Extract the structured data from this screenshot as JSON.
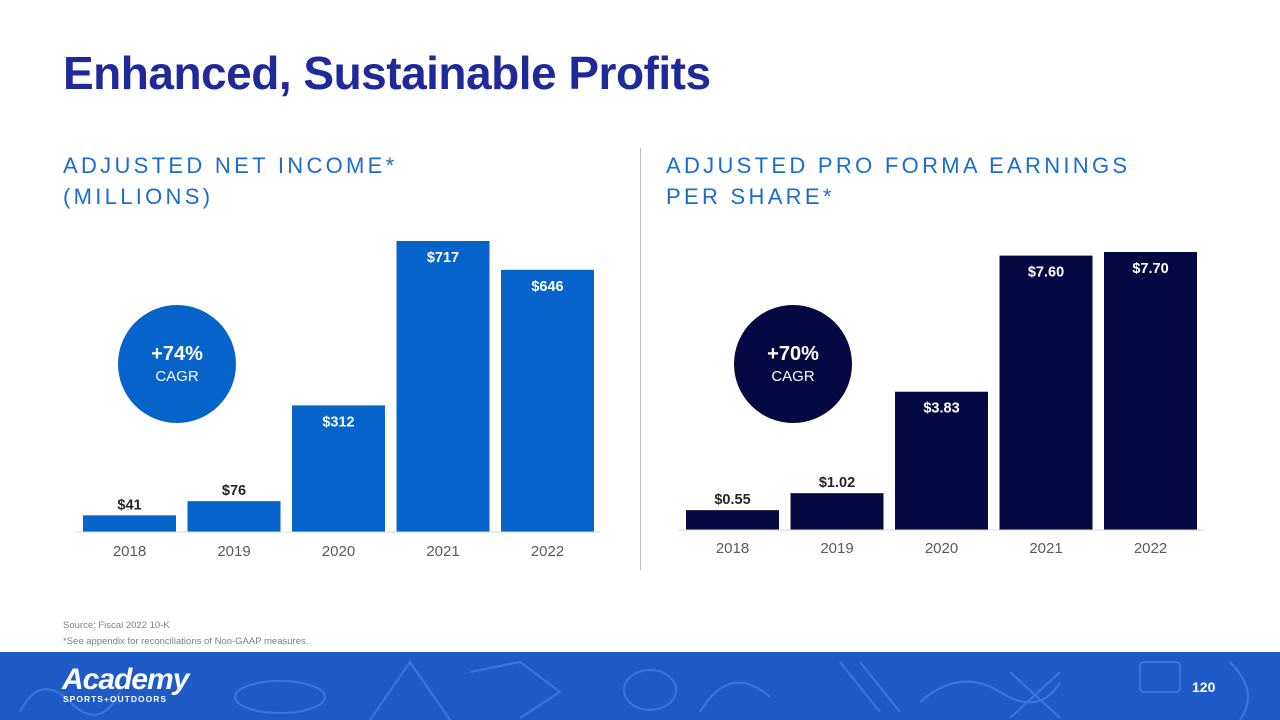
{
  "title": "Enhanced, Sustainable Profits",
  "left_subtitle": {
    "line1": "ADJUSTED NET INCOME*",
    "line2": "(MILLIONS)"
  },
  "right_subtitle": {
    "line1": "ADJUSTED PRO FORMA EARNINGS",
    "line2": "PER SHARE*"
  },
  "left_cagr": {
    "value": "+74%",
    "label": "CAGR"
  },
  "right_cagr": {
    "value": "+70%",
    "label": "CAGR"
  },
  "chart_data": [
    {
      "type": "bar",
      "title": "ADJUSTED NET INCOME* (MILLIONS)",
      "categories": [
        "2018",
        "2019",
        "2020",
        "2021",
        "2022"
      ],
      "values": [
        41,
        76,
        312,
        717,
        646
      ],
      "data_labels": [
        "$41",
        "$76",
        "$312",
        "$717",
        "$646"
      ],
      "xlabel": "",
      "ylabel": "",
      "ylim": [
        0,
        717
      ],
      "color": "#0563c9",
      "annotation": "+74% CAGR"
    },
    {
      "type": "bar",
      "title": "ADJUSTED PRO FORMA EARNINGS PER SHARE*",
      "categories": [
        "2018",
        "2019",
        "2020",
        "2021",
        "2022"
      ],
      "values": [
        0.55,
        1.02,
        3.83,
        7.6,
        7.7
      ],
      "data_labels": [
        "$0.55",
        "$1.02",
        "$3.83",
        "$7.60",
        "$7.70"
      ],
      "xlabel": "",
      "ylabel": "",
      "ylim": [
        0,
        7.7
      ],
      "color": "#060941",
      "annotation": "+70% CAGR"
    }
  ],
  "footnotes": {
    "source": "Source: Fiscal 2022 10-K",
    "note": "*See appendix for reconciliations of Non-GAAP measures."
  },
  "footer": {
    "logo_text": "Academy",
    "logo_tagline": "SPORTS+OUTDOORS",
    "page_number": "120"
  },
  "colors": {
    "title": "#1f2a99",
    "subtitle": "#1a6cd3",
    "bar_left": "#0563c9",
    "bar_right": "#060941",
    "footer_bg": "#1e5bc6"
  }
}
